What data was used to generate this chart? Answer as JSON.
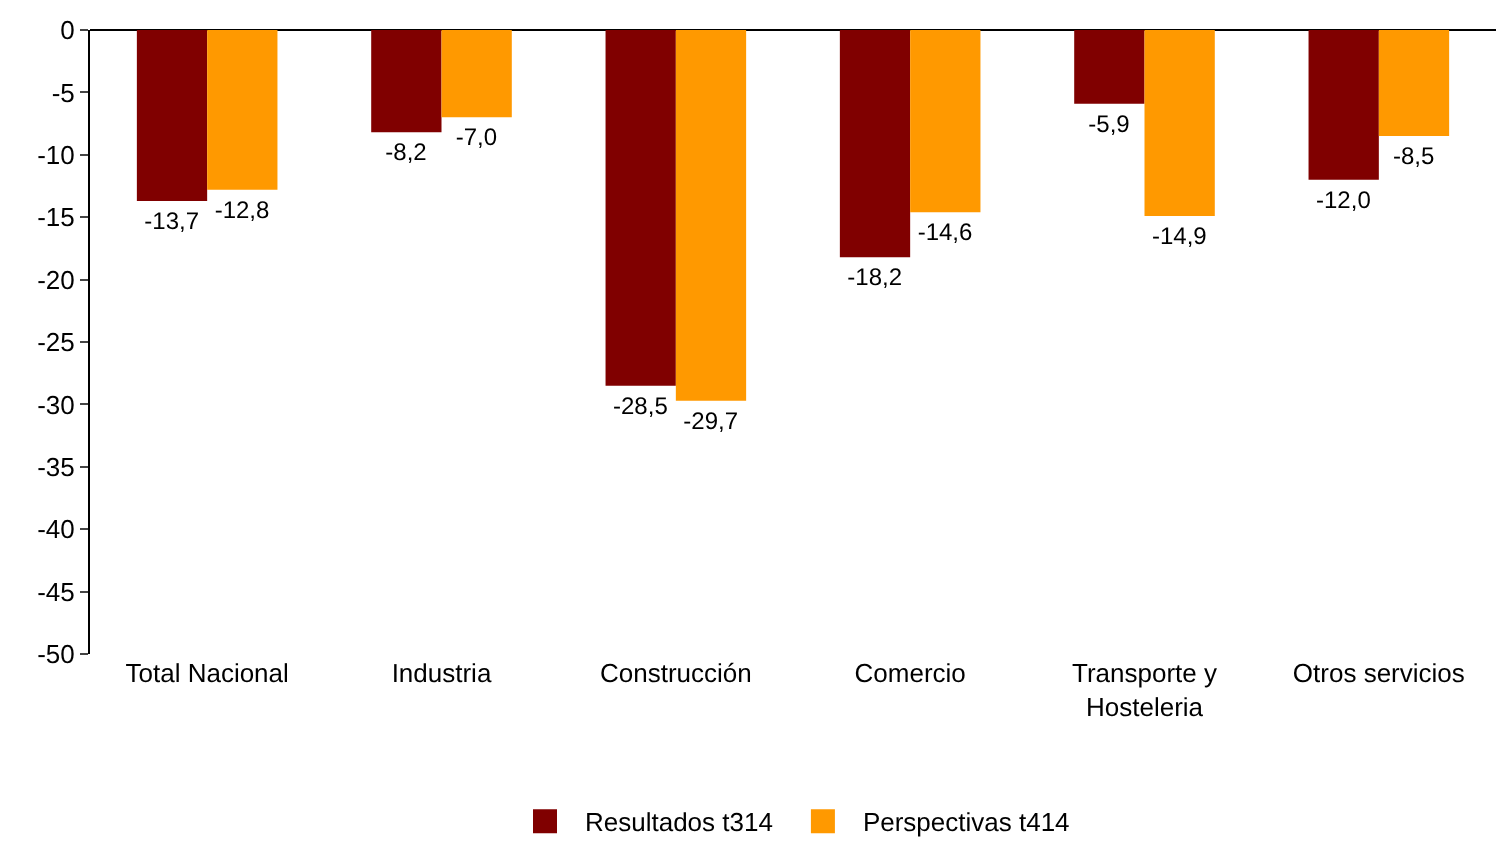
{
  "chart_data": {
    "type": "bar",
    "categories": [
      "Total Nacional",
      "Industria",
      "Construcción",
      "Comercio",
      "Transporte y\nHosteleria",
      "Otros servicios"
    ],
    "series": [
      {
        "name": "Resultados t314",
        "color": "#800000",
        "values": [
          -13.7,
          -8.2,
          -28.5,
          -18.2,
          -5.9,
          -12.0
        ],
        "value_labels": [
          "-13,7",
          "-8,2",
          "-28,5",
          "-18,2",
          "-5,9",
          "-12,0"
        ]
      },
      {
        "name": "Perspectivas t414",
        "color": "#ff9900",
        "values": [
          -12.8,
          -7.0,
          -29.7,
          -14.6,
          -14.9,
          -8.5
        ],
        "value_labels": [
          "-12,8",
          "-7,0",
          "-29,7",
          "-14,6",
          "-14,9",
          "-8,5"
        ]
      }
    ],
    "ylim": [
      -50,
      0
    ],
    "yticks": [
      -50,
      -45,
      -40,
      -35,
      -30,
      -25,
      -20,
      -15,
      -10,
      -5,
      0
    ],
    "grid": false,
    "legend": "bottom"
  }
}
